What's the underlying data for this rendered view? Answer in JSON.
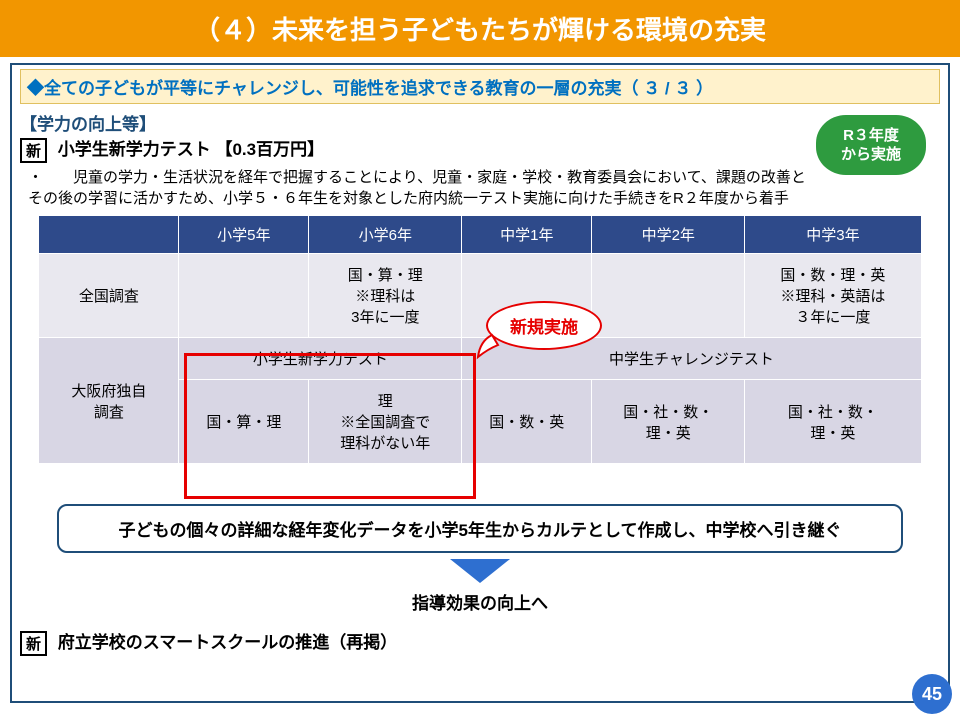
{
  "title": "（４）未来を担う子どもたちが輝ける環境の充実",
  "subtitle": "◆全ての子どもが平等にチャレンジし、可能性を追求できる教育の一層の充実（ ３ / ３ ）",
  "section_label": "【学力の向上等】",
  "new_tag": "新",
  "item_title": " 小学生新学力テスト 【0.3百万円】",
  "body_text": "・　　児童の学力・生活状況を経年で把握することにより、児童・家庭・学校・教育委員会において、課題の改善とその後の学習に活かすため、小学５・６年生を対象とした府内統一テスト実施に向けた手続きをR２年度から着手",
  "green_badge": "R３年度\nから実施",
  "table": {
    "headers": [
      "",
      "小学5年",
      "小学6年",
      "中学1年",
      "中学2年",
      "中学3年"
    ],
    "row1_label": "全国調査",
    "row1": [
      "",
      "国・算・理\n※理科は\n3年に一度",
      "",
      "",
      "国・数・理・英\n※理科・英語は\n３年に一度"
    ],
    "row2_label": "大阪府独自\n調査",
    "row2_top": [
      "小学生新学力テスト",
      "中学生チャレンジテスト"
    ],
    "row2_bottom": [
      "国・算・理",
      "理\n※全国調査で\n理科がない年",
      "国・数・英",
      "国・社・数・\n理・英",
      "国・社・数・\n理・英"
    ]
  },
  "callout": "新規実施",
  "bottom_box": "子どもの個々の詳細な経年変化データを小学5年生からカルテとして作成し、中学校へ引き継ぐ",
  "result_text": "指導効果の向上へ",
  "reposted": " 府立学校のスマートスクールの推進（再掲）",
  "page_num": "45",
  "colors": {
    "title_bg": "#f29600",
    "accent_blue": "#1f4e79",
    "link_blue": "#0070c0",
    "th_bg": "#2e4a8a",
    "green": "#2e9b3f",
    "red": "#e60000",
    "arrow_blue": "#2e6fd0"
  }
}
